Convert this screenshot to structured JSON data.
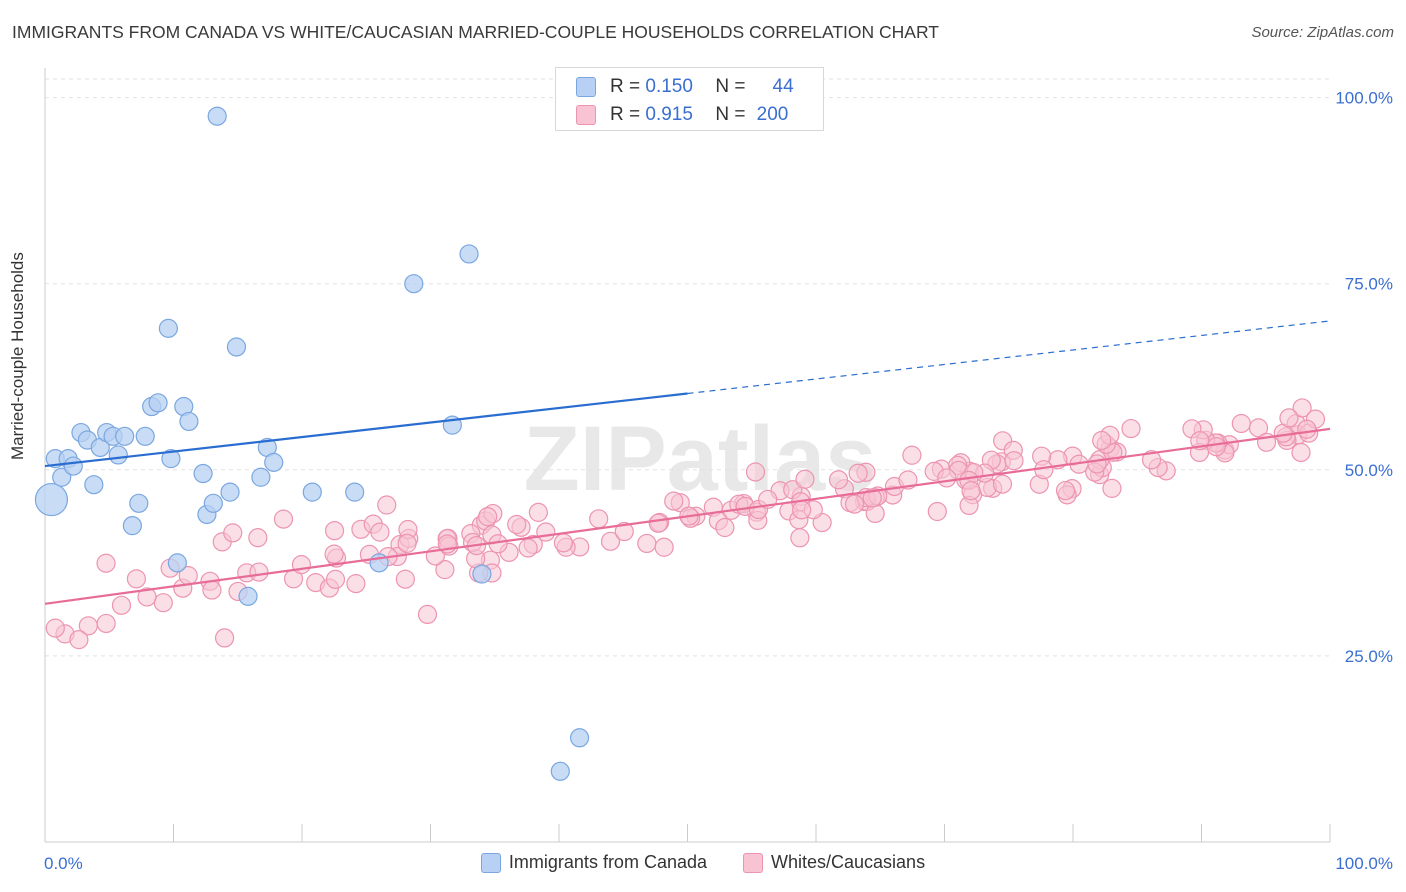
{
  "title": "IMMIGRANTS FROM CANADA VS WHITE/CAUCASIAN MARRIED-COUPLE HOUSEHOLDS CORRELATION CHART",
  "source": "Source: ZipAtlas.com",
  "watermark": "ZIPatlas",
  "stats": {
    "r_label": "R =",
    "n_label": "N =",
    "rows": [
      {
        "r": "0.150",
        "n": "44",
        "color": "#b7d0f3"
      },
      {
        "r": "0.915",
        "n": "200",
        "color": "#f8c4d4"
      }
    ]
  },
  "chart_data": {
    "type": "scatter",
    "title": "IMMIGRANTS FROM CANADA VS WHITE/CAUCASIAN MARRIED-COUPLE HOUSEHOLDS CORRELATION CHART",
    "xlabel": "",
    "ylabel": "Married-couple Households",
    "xlim": [
      0,
      100
    ],
    "ylim": [
      0,
      102.5
    ],
    "x_tick_labels": [
      "0.0%",
      "100.0%"
    ],
    "y_ticks": [
      25,
      50,
      75,
      100
    ],
    "y_tick_labels": [
      "25.0%",
      "50.0%",
      "75.0%",
      "100.0%"
    ],
    "grid": true,
    "legend": [
      "Immigrants from Canada",
      "Whites/Caucasians"
    ],
    "series": [
      {
        "name": "Immigrants from Canada",
        "color": "#7aa7e0",
        "fill": "#b7d0f3",
        "line_color": "#2a6dd0",
        "r": 0.15,
        "n": 44,
        "trend": {
          "x0": 0,
          "y0": 50.5,
          "x1": 100,
          "y1": 70.0,
          "solid_until": 50
        },
        "points": [
          [
            0.5,
            46.0,
            16
          ],
          [
            0.8,
            51.5,
            9
          ],
          [
            1.3,
            49.0,
            9
          ],
          [
            1.8,
            51.5,
            9
          ],
          [
            2.2,
            50.5,
            9
          ],
          [
            2.8,
            55.0,
            9
          ],
          [
            3.3,
            54.0,
            9
          ],
          [
            3.8,
            48.0,
            9
          ],
          [
            4.3,
            53.0,
            9
          ],
          [
            4.8,
            55.0,
            9
          ],
          [
            5.3,
            54.5,
            9
          ],
          [
            5.7,
            52.0,
            9
          ],
          [
            6.2,
            54.5,
            9
          ],
          [
            6.8,
            42.5,
            9
          ],
          [
            7.3,
            45.5,
            9
          ],
          [
            7.8,
            54.5,
            9
          ],
          [
            8.3,
            58.5,
            9
          ],
          [
            8.8,
            59.0,
            9
          ],
          [
            9.6,
            69.0,
            9
          ],
          [
            9.8,
            51.5,
            9
          ],
          [
            10.3,
            37.5,
            9
          ],
          [
            10.8,
            58.5,
            9
          ],
          [
            11.2,
            56.5,
            9
          ],
          [
            12.3,
            49.5,
            9
          ],
          [
            12.6,
            44.0,
            9
          ],
          [
            13.1,
            45.5,
            9
          ],
          [
            13.4,
            97.5,
            9
          ],
          [
            14.4,
            47.0,
            9
          ],
          [
            14.9,
            66.5,
            9
          ],
          [
            15.8,
            33.0,
            9
          ],
          [
            16.8,
            49.0,
            9
          ],
          [
            17.3,
            53.0,
            9
          ],
          [
            17.8,
            51.0,
            9
          ],
          [
            20.8,
            47.0,
            9
          ],
          [
            24.1,
            47.0,
            9
          ],
          [
            26.0,
            37.5,
            9
          ],
          [
            28.7,
            75.0,
            9
          ],
          [
            31.7,
            56.0,
            9
          ],
          [
            33.0,
            79.0,
            9
          ],
          [
            34.0,
            36.0,
            9
          ],
          [
            40.1,
            9.5,
            9
          ],
          [
            41.6,
            14.0,
            9
          ]
        ]
      },
      {
        "name": "Whites/Caucasians",
        "color": "#ec94b1",
        "fill": "#f8c4d4",
        "line_color": "#e86c98",
        "r": 0.915,
        "n": 200,
        "trend": {
          "x0": 0,
          "y0": 32.0,
          "x1": 100,
          "y1": 55.5
        }
      }
    ]
  }
}
